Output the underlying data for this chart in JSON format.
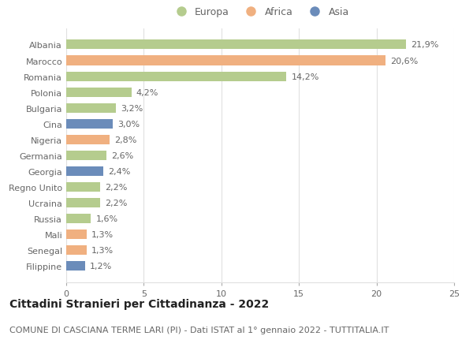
{
  "categories": [
    "Albania",
    "Marocco",
    "Romania",
    "Polonia",
    "Bulgaria",
    "Cina",
    "Nigeria",
    "Germania",
    "Georgia",
    "Regno Unito",
    "Ucraina",
    "Russia",
    "Mali",
    "Senegal",
    "Filippine"
  ],
  "values": [
    21.9,
    20.6,
    14.2,
    4.2,
    3.2,
    3.0,
    2.8,
    2.6,
    2.4,
    2.2,
    2.2,
    1.6,
    1.3,
    1.3,
    1.2
  ],
  "labels": [
    "21,9%",
    "20,6%",
    "14,2%",
    "4,2%",
    "3,2%",
    "3,0%",
    "2,8%",
    "2,6%",
    "2,4%",
    "2,2%",
    "2,2%",
    "1,6%",
    "1,3%",
    "1,3%",
    "1,2%"
  ],
  "continents": [
    "Europa",
    "Africa",
    "Europa",
    "Europa",
    "Europa",
    "Asia",
    "Africa",
    "Europa",
    "Asia",
    "Europa",
    "Europa",
    "Europa",
    "Africa",
    "Africa",
    "Asia"
  ],
  "colors": {
    "Europa": "#b5cc8e",
    "Africa": "#f0b080",
    "Asia": "#6b8cba"
  },
  "title": "Cittadini Stranieri per Cittadinanza - 2022",
  "subtitle": "COMUNE DI CASCIANA TERME LARI (PI) - Dati ISTAT al 1° gennaio 2022 - TUTTITALIA.IT",
  "xlim": [
    0,
    25
  ],
  "xticks": [
    0,
    5,
    10,
    15,
    20,
    25
  ],
  "background_color": "#ffffff",
  "grid_color": "#e0e0e0",
  "title_fontsize": 10,
  "subtitle_fontsize": 8,
  "label_fontsize": 8,
  "tick_fontsize": 8,
  "legend_fontsize": 9
}
